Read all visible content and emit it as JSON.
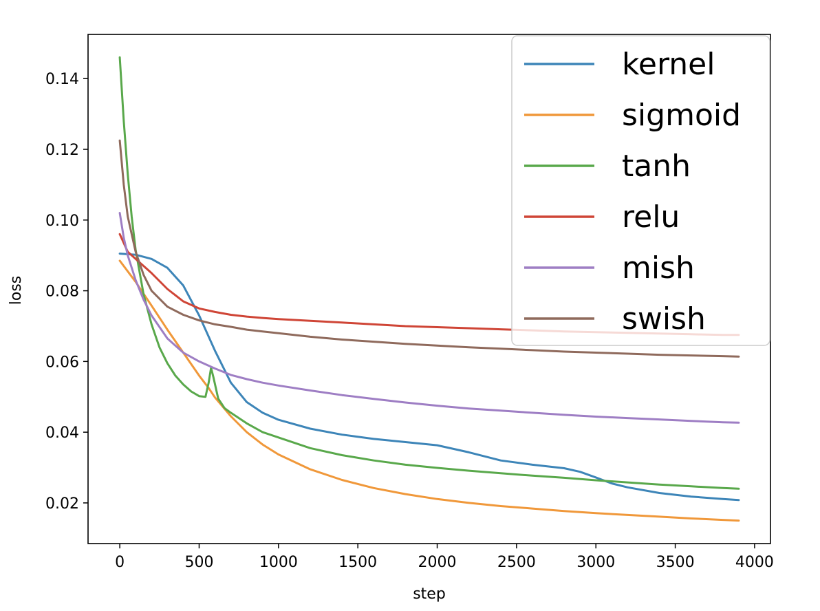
{
  "chart_data": {
    "type": "line",
    "title": "",
    "xlabel": "step",
    "ylabel": "loss",
    "xlim": [
      -200,
      4100
    ],
    "ylim": [
      0.0085,
      0.1525
    ],
    "xticks": [
      0,
      500,
      1000,
      1500,
      2000,
      2500,
      3000,
      3500,
      4000
    ],
    "xtick_labels": [
      "0",
      "500",
      "1000",
      "1500",
      "2000",
      "2500",
      "3000",
      "3500",
      "4000"
    ],
    "yticks": [
      0.02,
      0.04,
      0.06,
      0.08,
      0.1,
      0.12,
      0.14
    ],
    "ytick_labels": [
      "0.02",
      "0.04",
      "0.06",
      "0.08",
      "0.10",
      "0.12",
      "0.14"
    ],
    "grid": false,
    "legend_position": "top-right",
    "series": [
      {
        "name": "kernel",
        "color": "#3d85b8",
        "x": [
          0,
          100,
          200,
          300,
          400,
          500,
          600,
          700,
          800,
          900,
          1000,
          1200,
          1400,
          1600,
          1800,
          2000,
          2200,
          2400,
          2600,
          2800,
          2900,
          3000,
          3100,
          3200,
          3400,
          3600,
          3800,
          3900
        ],
        "y": [
          0.0905,
          0.0902,
          0.089,
          0.0865,
          0.0815,
          0.073,
          0.063,
          0.054,
          0.0485,
          0.0455,
          0.0435,
          0.041,
          0.0393,
          0.0381,
          0.0372,
          0.0363,
          0.0343,
          0.032,
          0.0308,
          0.0298,
          0.0288,
          0.0272,
          0.0255,
          0.0244,
          0.0228,
          0.0218,
          0.0211,
          0.0208
        ]
      },
      {
        "name": "sigmoid",
        "color": "#f0983a",
        "x": [
          0,
          100,
          200,
          300,
          400,
          500,
          560,
          600,
          700,
          800,
          900,
          1000,
          1200,
          1400,
          1600,
          1800,
          2000,
          2200,
          2400,
          2600,
          2800,
          3000,
          3200,
          3400,
          3600,
          3800,
          3900
        ],
        "y": [
          0.0885,
          0.0825,
          0.0758,
          0.069,
          0.0625,
          0.056,
          0.0525,
          0.0498,
          0.0445,
          0.04,
          0.0365,
          0.0337,
          0.0295,
          0.0265,
          0.0242,
          0.0225,
          0.0211,
          0.02,
          0.0191,
          0.0184,
          0.0177,
          0.0171,
          0.0166,
          0.0161,
          0.0156,
          0.0152,
          0.015
        ]
      },
      {
        "name": "tanh",
        "color": "#59a84b",
        "x": [
          0,
          25,
          50,
          75,
          100,
          150,
          200,
          250,
          300,
          350,
          400,
          450,
          500,
          540,
          560,
          575,
          590,
          620,
          660,
          700,
          800,
          900,
          1000,
          1200,
          1400,
          1600,
          1800,
          2000,
          2200,
          2400,
          2600,
          2800,
          3000,
          3200,
          3400,
          3600,
          3800,
          3900
        ],
        "y": [
          0.146,
          0.128,
          0.113,
          0.101,
          0.0915,
          0.079,
          0.0705,
          0.064,
          0.0595,
          0.056,
          0.0535,
          0.0515,
          0.0502,
          0.05,
          0.054,
          0.0582,
          0.0555,
          0.0495,
          0.0468,
          0.0455,
          0.0425,
          0.04,
          0.0385,
          0.0355,
          0.0335,
          0.032,
          0.0308,
          0.0299,
          0.0291,
          0.0284,
          0.0277,
          0.0271,
          0.0264,
          0.0258,
          0.0252,
          0.0247,
          0.0242,
          0.024
        ]
      },
      {
        "name": "relu",
        "color": "#cf4536",
        "x": [
          0,
          50,
          100,
          200,
          300,
          400,
          500,
          600,
          700,
          800,
          900,
          1000,
          1200,
          1400,
          1600,
          1800,
          2000,
          2200,
          2400,
          2600,
          2800,
          3000,
          3200,
          3400,
          3600,
          3800,
          3900
        ],
        "y": [
          0.096,
          0.091,
          0.089,
          0.085,
          0.0805,
          0.077,
          0.075,
          0.074,
          0.0732,
          0.0727,
          0.0723,
          0.072,
          0.0715,
          0.071,
          0.0705,
          0.07,
          0.0697,
          0.0694,
          0.0691,
          0.0688,
          0.0685,
          0.0683,
          0.0681,
          0.0679,
          0.0677,
          0.0675,
          0.0675
        ]
      },
      {
        "name": "mish",
        "color": "#9e7ec4",
        "x": [
          0,
          25,
          50,
          100,
          150,
          200,
          300,
          400,
          500,
          600,
          700,
          800,
          900,
          1000,
          1200,
          1400,
          1600,
          1800,
          2000,
          2200,
          2400,
          2600,
          2800,
          3000,
          3200,
          3400,
          3600,
          3800,
          3900
        ],
        "y": [
          0.102,
          0.095,
          0.09,
          0.083,
          0.0775,
          0.073,
          0.0665,
          0.0625,
          0.06,
          0.058,
          0.0562,
          0.055,
          0.054,
          0.0532,
          0.0518,
          0.0505,
          0.0494,
          0.0484,
          0.0475,
          0.0467,
          0.0461,
          0.0455,
          0.0449,
          0.0444,
          0.044,
          0.0436,
          0.0432,
          0.0428,
          0.0427
        ]
      },
      {
        "name": "swish",
        "color": "#8f6a5c",
        "x": [
          0,
          25,
          50,
          100,
          150,
          200,
          300,
          400,
          500,
          600,
          700,
          800,
          900,
          1000,
          1200,
          1400,
          1600,
          1800,
          2000,
          2200,
          2400,
          2600,
          2800,
          3000,
          3200,
          3400,
          3600,
          3800,
          3900
        ],
        "y": [
          0.1225,
          0.11,
          0.101,
          0.091,
          0.0845,
          0.08,
          0.0755,
          0.0732,
          0.0716,
          0.0705,
          0.0698,
          0.069,
          0.0685,
          0.068,
          0.067,
          0.0662,
          0.0656,
          0.065,
          0.0645,
          0.064,
          0.0636,
          0.0632,
          0.0628,
          0.0625,
          0.0622,
          0.0619,
          0.0617,
          0.0615,
          0.0614
        ]
      }
    ]
  }
}
